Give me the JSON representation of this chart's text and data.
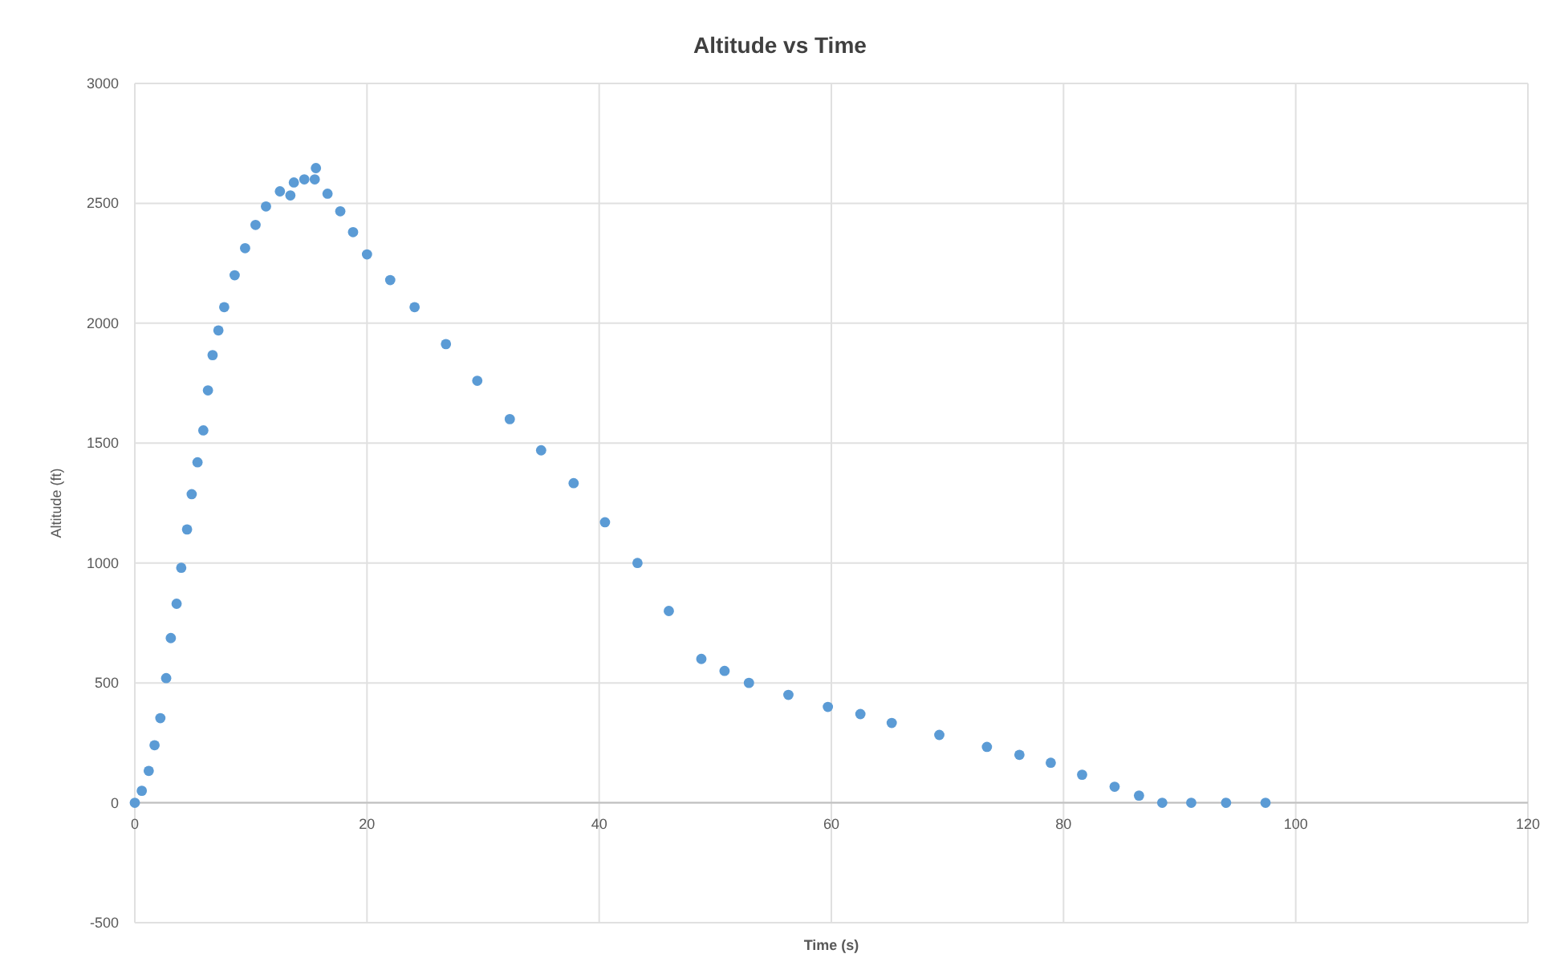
{
  "chart_data": {
    "type": "scatter",
    "title": "Altitude vs Time",
    "xlabel": "Time (s)",
    "ylabel": "Altitude (ft)",
    "xlim": [
      0,
      120
    ],
    "xticks": [
      0,
      20,
      40,
      60,
      80,
      100,
      120
    ],
    "ylim": [
      -500,
      3000
    ],
    "yticks": [
      -500,
      0,
      500,
      1000,
      1500,
      2000,
      2500,
      3000
    ],
    "grid": true,
    "marker": "circle",
    "series": [
      {
        "color": "#5b9bd5",
        "x": [
          0,
          0.6,
          1.2,
          1.7,
          2.2,
          2.7,
          3.1,
          3.6,
          4.0,
          4.5,
          4.9,
          5.4,
          5.9,
          6.3,
          6.7,
          7.2,
          7.7,
          8.6,
          9.5,
          10.4,
          11.3,
          12.5,
          13.4,
          13.7,
          14.6,
          15.5,
          15.6,
          16.6,
          17.7,
          18.8,
          20,
          22,
          24.1,
          26.8,
          29.5,
          32.3,
          35,
          37.8,
          40.5,
          43.3,
          46,
          48.8,
          50.8,
          52.9,
          56.3,
          59.7,
          62.5,
          65.2,
          69.3,
          73.4,
          76.2,
          78.9,
          81.6,
          84.4,
          86.5,
          88.5,
          91,
          94,
          97.4
        ],
        "values": [
          0,
          50,
          133,
          240,
          353,
          520,
          687,
          830,
          980,
          1140,
          1287,
          1420,
          1553,
          1720,
          1867,
          1970,
          2067,
          2200,
          2313,
          2410,
          2487,
          2550,
          2533,
          2587,
          2600,
          2600,
          2647,
          2540,
          2467,
          2380,
          2287,
          2180,
          2067,
          1913,
          1760,
          1600,
          1470,
          1333,
          1170,
          1000,
          800,
          600,
          550,
          500,
          450,
          400,
          370,
          333,
          283,
          233,
          200,
          167,
          117,
          67,
          30,
          0,
          0,
          0,
          0
        ]
      }
    ]
  }
}
